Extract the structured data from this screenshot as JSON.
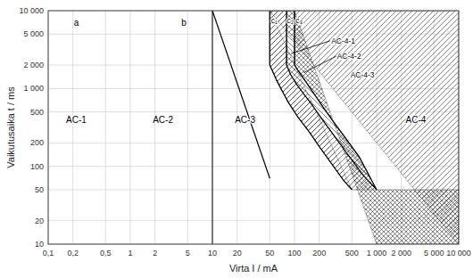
{
  "chart_data": {
    "type": "line",
    "log": true,
    "grid": true,
    "xlabel": "Virta I / mA",
    "ylabel": "Vaikutusaika t / ms",
    "xlim": [
      0.1,
      10000
    ],
    "ylim": [
      10,
      10000
    ],
    "xticks": [
      {
        "value": 0.1,
        "label": "0,1"
      },
      {
        "value": 0.2,
        "label": "0,2"
      },
      {
        "value": 0.5,
        "label": "0,5"
      },
      1,
      2,
      5,
      10,
      20,
      50,
      100,
      200,
      500,
      {
        "value": 1000,
        "label": "1 000"
      },
      {
        "value": 2000,
        "label": "2 000"
      },
      {
        "value": 5000,
        "label": "5 000"
      },
      {
        "value": 10000,
        "label": "10 000"
      }
    ],
    "yticks": [
      10,
      20,
      50,
      100,
      200,
      500,
      {
        "value": 1000,
        "label": "1 000"
      },
      {
        "value": 2000,
        "label": "2 000"
      },
      {
        "value": 5000,
        "label": "5 000"
      },
      {
        "value": 10000,
        "label": "10 000"
      }
    ],
    "series": [
      {
        "x": [
          10,
          50
        ],
        "values": [
          10000,
          70
        ],
        "color": "#000000"
      },
      {
        "x": [
          50,
          50,
          55,
          60,
          70,
          85,
          110,
          150,
          200,
          280,
          400,
          500
        ],
        "values": [
          10000,
          2000,
          1600,
          1300,
          950,
          650,
          430,
          280,
          180,
          110,
          65,
          50
        ],
        "color": "#000000"
      },
      {
        "x": [
          80,
          80,
          90,
          105,
          130,
          170,
          230,
          320,
          500,
          700,
          1000
        ],
        "values": [
          10000,
          2000,
          1500,
          1150,
          850,
          580,
          370,
          230,
          120,
          75,
          50
        ],
        "color": "#000000"
      },
      {
        "x": [
          100,
          100,
          115,
          135,
          165,
          215,
          295,
          420,
          620,
          1000
        ],
        "values": [
          10000,
          2000,
          1600,
          1250,
          920,
          610,
          380,
          230,
          130,
          50
        ],
        "color": "#000000"
      }
    ],
    "vlines": [
      {
        "x": 10,
        "color": "#000000"
      }
    ],
    "labels": [
      {
        "text": "AC-1",
        "x": 0.22,
        "y": 400
      },
      {
        "text": "AC-2",
        "x": 2.5,
        "y": 400
      },
      {
        "text": "AC-3",
        "x": 25,
        "y": 400
      },
      {
        "text": "AC-4",
        "x": 3000,
        "y": 400
      },
      {
        "text": "a",
        "x": 0.22,
        "y": 7000
      },
      {
        "text": "b",
        "x": 4.5,
        "y": 7000
      }
    ],
    "notes": [
      {
        "text": "c₁",
        "x": 52,
        "y": 7500
      },
      {
        "text": "c₂",
        "x": 81,
        "y": 7500
      },
      {
        "text": "c₃",
        "x": 103,
        "y": 7500
      },
      {
        "text": "AC-4-1",
        "x": 280,
        "y": 3800,
        "arrow_x": 90,
        "arrow_y": 2800
      },
      {
        "text": "AC-4-2",
        "x": 330,
        "y": 2400,
        "arrow_x": 130,
        "arrow_y": 1600
      },
      {
        "text": "AC-4-3",
        "x": 480,
        "y": 1500
      }
    ]
  }
}
